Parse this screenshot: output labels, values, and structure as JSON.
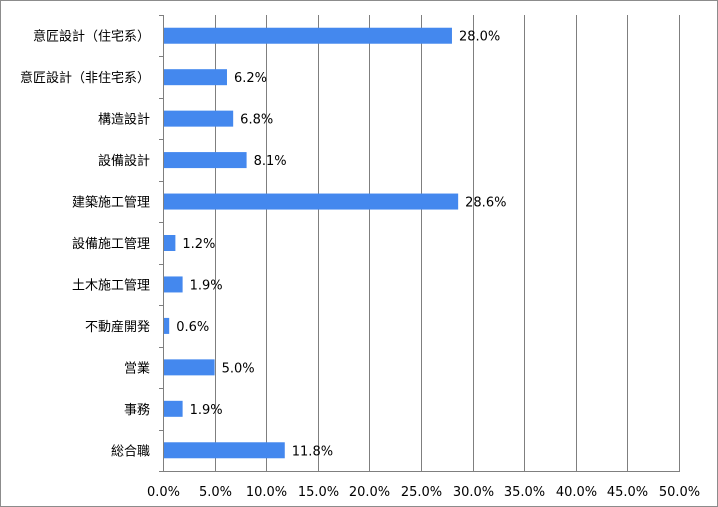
{
  "chart_data": {
    "type": "bar",
    "orientation": "horizontal",
    "categories": [
      "意匠設計（住宅系）",
      "意匠設計（非住宅系）",
      "構造設計",
      "設備設計",
      "建築施工管理",
      "設備施工管理",
      "土木施工管理",
      "不動産開発",
      "営業",
      "事務",
      "総合職"
    ],
    "values": [
      28.0,
      6.2,
      6.8,
      8.1,
      28.6,
      1.2,
      1.9,
      0.6,
      5.0,
      1.9,
      11.8
    ],
    "data_labels": [
      "28.0%",
      "6.2%",
      "6.8%",
      "8.1%",
      "28.6%",
      "1.2%",
      "1.9%",
      "0.6%",
      "5.0%",
      "1.9%",
      "11.8%"
    ],
    "title": "",
    "xlabel": "",
    "ylabel": "",
    "xlim": [
      0,
      50
    ],
    "x_ticks": [
      0,
      5,
      10,
      15,
      20,
      25,
      30,
      35,
      40,
      45,
      50
    ],
    "x_tick_labels": [
      "0.0%",
      "5.0%",
      "10.0%",
      "15.0%",
      "20.0%",
      "25.0%",
      "30.0%",
      "35.0%",
      "40.0%",
      "45.0%",
      "50.0%"
    ],
    "grid": "vertical",
    "legend": "none",
    "colors": {
      "bar": "#4488ee",
      "grid": "#7f7f7f",
      "axis": "#7f7f7f",
      "text": "#000000"
    }
  }
}
